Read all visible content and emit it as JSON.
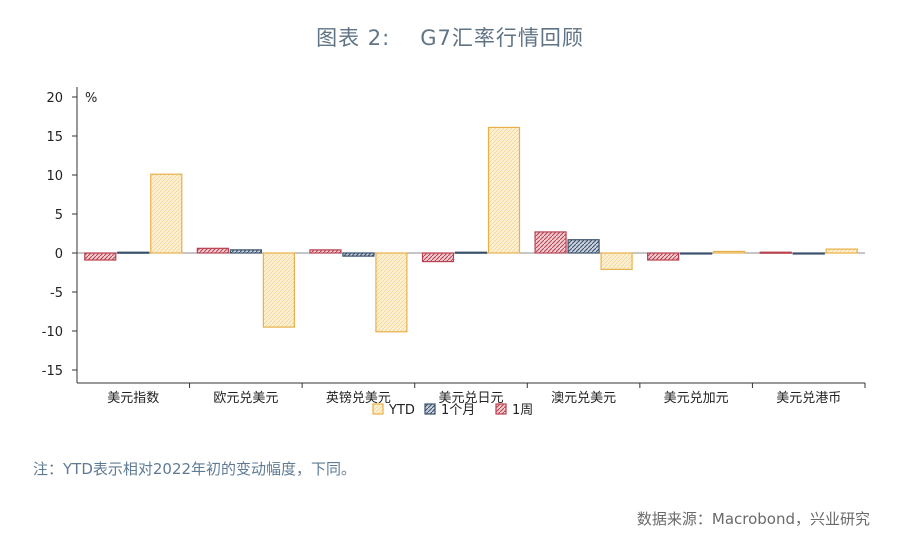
{
  "header": {
    "title_prefix": "图表 2:",
    "title_main": "G7汇率行情回顾"
  },
  "note": "注：YTD表示相对2022年初的变动幅度，下同。",
  "source": "数据来源：Macrobond，兴业研究",
  "colors": {
    "ytd_stroke": "#e8b04a",
    "ytd_fill": "#fdf1d3",
    "month_stroke": "#3a4f6a",
    "month_fill": "#c9d2de",
    "week_stroke": "#b8404f",
    "week_fill": "#f2cdd2"
  },
  "chart_data": {
    "type": "bar",
    "unit_label": "%",
    "categories": [
      "美元指数",
      "欧元兑美元",
      "英镑兑美元",
      "美元兑日元",
      "澳元兑美元",
      "美元兑加元",
      "美元兑港币"
    ],
    "series": [
      {
        "name": "1周",
        "values": [
          -0.9,
          0.6,
          0.4,
          -1.1,
          2.7,
          -0.9,
          0.1
        ]
      },
      {
        "name": "1个月",
        "values": [
          0.1,
          0.4,
          -0.4,
          0.1,
          1.7,
          0.0,
          0.0
        ]
      },
      {
        "name": "YTD",
        "values": [
          10.1,
          -9.5,
          -10.1,
          16.1,
          -2.1,
          0.2,
          0.5
        ]
      }
    ],
    "legend": [
      "YTD",
      "1个月",
      "1周"
    ],
    "yticks": [
      20,
      15,
      10,
      5,
      0,
      -5,
      -10,
      -15
    ],
    "ylim": [
      -15,
      20
    ],
    "grid": false,
    "legend_position": "bottom"
  }
}
